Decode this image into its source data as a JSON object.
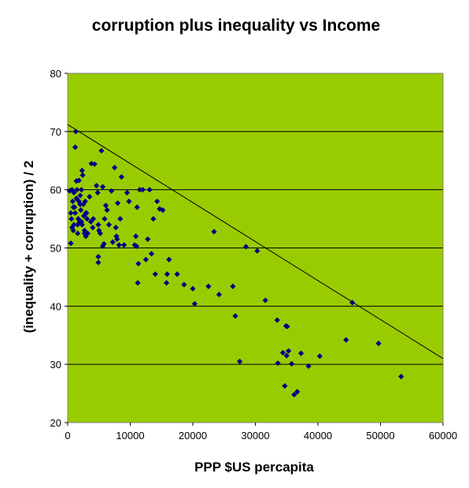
{
  "chart_data": {
    "type": "scatter",
    "title": "corruption plus inequality vs Income",
    "xlabel": "PPP $US percapita",
    "ylabel": "(inequality + corruption)  / 2",
    "xlim": [
      0,
      60000
    ],
    "ylim": [
      20,
      80
    ],
    "xticks": [
      "0",
      "10000",
      "20000",
      "30000",
      "40000",
      "50000",
      "60000"
    ],
    "yticks": [
      "20",
      "30",
      "40",
      "50",
      "60",
      "70",
      "80"
    ],
    "grid": "horizontal",
    "legend": "none",
    "colors": {
      "plot_bg": "#99CC00",
      "marker": "#000080",
      "grid": "#000000",
      "trendline": "#000000"
    },
    "trendline": {
      "x": [
        0,
        60000
      ],
      "y": [
        71.2,
        31.0
      ]
    },
    "points": [
      [
        300,
        59.8
      ],
      [
        500,
        56
      ],
      [
        600,
        55
      ],
      [
        700,
        60
      ],
      [
        800,
        58
      ],
      [
        900,
        53
      ],
      [
        1000,
        54
      ],
      [
        1000,
        59.5
      ],
      [
        1100,
        57
      ],
      [
        1200,
        67.3
      ],
      [
        1300,
        70
      ],
      [
        1400,
        61.5
      ],
      [
        1500,
        60
      ],
      [
        1600,
        52.5
      ],
      [
        1700,
        55
      ],
      [
        1800,
        58
      ],
      [
        1900,
        54.5
      ],
      [
        2000,
        59
      ],
      [
        2100,
        56.5
      ],
      [
        2200,
        60
      ],
      [
        2300,
        63.3
      ],
      [
        2400,
        62.5
      ],
      [
        2500,
        57.5
      ],
      [
        2600,
        55.5
      ],
      [
        2700,
        53
      ],
      [
        2800,
        58
      ],
      [
        2900,
        52
      ],
      [
        3000,
        56
      ],
      [
        3100,
        55
      ],
      [
        500,
        50.8
      ],
      [
        700,
        53.5
      ],
      [
        900,
        57
      ],
      [
        1200,
        56
      ],
      [
        1400,
        58.5
      ],
      [
        1600,
        54
      ],
      [
        2200,
        54.5
      ],
      [
        2700,
        52.5
      ],
      [
        3200,
        52.5
      ],
      [
        3500,
        58.8
      ],
      [
        3800,
        64.5
      ],
      [
        4100,
        55
      ],
      [
        4300,
        64.4
      ],
      [
        4600,
        60.7
      ],
      [
        4800,
        59.5
      ],
      [
        4900,
        54
      ],
      [
        5000,
        53
      ],
      [
        5200,
        52.5
      ],
      [
        5400,
        66.7
      ],
      [
        5600,
        60.5
      ],
      [
        5800,
        50.7
      ],
      [
        5900,
        55
      ],
      [
        6100,
        57.3
      ],
      [
        6300,
        56.5
      ],
      [
        6600,
        54
      ],
      [
        7000,
        59.8
      ],
      [
        7200,
        51
      ],
      [
        7500,
        63.8
      ],
      [
        7800,
        52
      ],
      [
        8000,
        57.7
      ],
      [
        8200,
        50.5
      ],
      [
        8400,
        55
      ],
      [
        8600,
        62.2
      ],
      [
        9500,
        59.5
      ],
      [
        9800,
        58
      ],
      [
        10700,
        50.5
      ],
      [
        10900,
        52
      ],
      [
        11100,
        57
      ],
      [
        11000,
        50.3
      ],
      [
        11300,
        47.3
      ],
      [
        11500,
        60
      ],
      [
        11200,
        44
      ],
      [
        12000,
        60
      ],
      [
        12500,
        48
      ],
      [
        12800,
        51.5
      ],
      [
        13100,
        60
      ],
      [
        13400,
        49
      ],
      [
        13700,
        55
      ],
      [
        14000,
        45.5
      ],
      [
        14300,
        58
      ],
      [
        14700,
        56.7
      ],
      [
        15200,
        56.5
      ],
      [
        15800,
        44
      ],
      [
        16200,
        48
      ],
      [
        15900,
        45.5
      ],
      [
        17500,
        45.5
      ],
      [
        18600,
        43.7
      ],
      [
        20000,
        43
      ],
      [
        20300,
        40.4
      ],
      [
        22500,
        43.4
      ],
      [
        23400,
        52.8
      ],
      [
        24200,
        42
      ],
      [
        26400,
        43.4
      ],
      [
        26800,
        38.3
      ],
      [
        27500,
        30.5
      ],
      [
        28500,
        50.2
      ],
      [
        30300,
        49.5
      ],
      [
        31600,
        41
      ],
      [
        33500,
        37.6
      ],
      [
        33600,
        30.2
      ],
      [
        34400,
        32
      ],
      [
        34700,
        26.3
      ],
      [
        34900,
        36.6
      ],
      [
        35100,
        36.5
      ],
      [
        35000,
        31.5
      ],
      [
        35300,
        32.3
      ],
      [
        35800,
        30.1
      ],
      [
        36200,
        24.8
      ],
      [
        36700,
        25.3
      ],
      [
        37300,
        31.9
      ],
      [
        38500,
        29.7
      ],
      [
        40300,
        31.4
      ],
      [
        44500,
        34.2
      ],
      [
        45500,
        40.6
      ],
      [
        49700,
        33.6
      ],
      [
        53300,
        27.9
      ],
      [
        1800,
        61.6
      ],
      [
        2000,
        57.5
      ],
      [
        2900,
        56
      ],
      [
        4000,
        53.5
      ],
      [
        4900,
        47.5
      ],
      [
        4900,
        48.5
      ],
      [
        5600,
        50.3
      ],
      [
        3700,
        54.5
      ],
      [
        2300,
        54
      ],
      [
        7700,
        53.5
      ],
      [
        7900,
        51.5
      ],
      [
        9000,
        50.5
      ]
    ]
  }
}
